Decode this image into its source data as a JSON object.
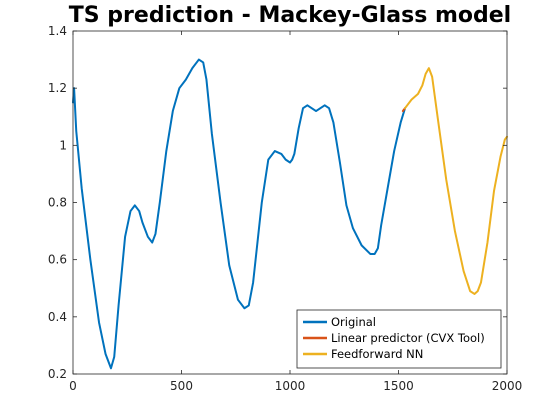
{
  "chart_data": {
    "type": "line",
    "title": "TS prediction - Mackey-Glass model",
    "xlabel": "",
    "ylabel": "",
    "xlim": [
      0,
      2000
    ],
    "ylim": [
      0.2,
      1.4
    ],
    "xticks": [
      0,
      500,
      1000,
      1500,
      2000
    ],
    "yticks": [
      0.2,
      0.4,
      0.6,
      0.8,
      1,
      1.2,
      1.4
    ],
    "xtick_labels": [
      "0",
      "500",
      "1000",
      "1500",
      "2000"
    ],
    "ytick_labels": [
      "0.2",
      "0.4",
      "0.6",
      "0.8",
      "1",
      "1.2",
      "1.4"
    ],
    "grid": false,
    "legend_position": "bottom-right",
    "series": [
      {
        "name": "Original",
        "color": "#0072bd",
        "x": [
          0,
          5,
          15,
          40,
          80,
          120,
          150,
          175,
          190,
          210,
          240,
          265,
          285,
          305,
          320,
          345,
          365,
          380,
          400,
          430,
          460,
          490,
          520,
          550,
          580,
          600,
          615,
          640,
          680,
          720,
          760,
          790,
          810,
          830,
          870,
          900,
          930,
          960,
          980,
          1000,
          1010,
          1020,
          1040,
          1060,
          1080,
          1100,
          1120,
          1140,
          1160,
          1180,
          1200,
          1230,
          1260,
          1290,
          1330,
          1370,
          1390,
          1405,
          1420,
          1450,
          1480,
          1510,
          1530
        ],
        "y": [
          1.15,
          1.2,
          1.05,
          0.85,
          0.6,
          0.38,
          0.27,
          0.22,
          0.26,
          0.44,
          0.68,
          0.77,
          0.79,
          0.77,
          0.73,
          0.68,
          0.66,
          0.69,
          0.8,
          0.98,
          1.12,
          1.2,
          1.23,
          1.27,
          1.3,
          1.29,
          1.23,
          1.04,
          0.8,
          0.58,
          0.46,
          0.43,
          0.44,
          0.52,
          0.8,
          0.95,
          0.98,
          0.97,
          0.95,
          0.94,
          0.95,
          0.97,
          1.06,
          1.13,
          1.14,
          1.13,
          1.12,
          1.13,
          1.14,
          1.13,
          1.08,
          0.94,
          0.79,
          0.71,
          0.65,
          0.62,
          0.62,
          0.64,
          0.72,
          0.85,
          0.98,
          1.08,
          1.13
        ]
      },
      {
        "name": "Linear predictor (CVX Tool)",
        "color": "#d95319",
        "x": [
          1520,
          1530
        ],
        "y": [
          1.12,
          1.13
        ]
      },
      {
        "name": "Feedforward NN",
        "color": "#edb120",
        "x": [
          1530,
          1560,
          1590,
          1610,
          1625,
          1640,
          1655,
          1680,
          1720,
          1760,
          1800,
          1830,
          1850,
          1865,
          1880,
          1910,
          1940,
          1970,
          1990,
          2000
        ],
        "y": [
          1.13,
          1.16,
          1.18,
          1.21,
          1.25,
          1.27,
          1.24,
          1.1,
          0.88,
          0.7,
          0.56,
          0.49,
          0.48,
          0.49,
          0.52,
          0.66,
          0.84,
          0.96,
          1.02,
          1.03
        ]
      }
    ]
  }
}
